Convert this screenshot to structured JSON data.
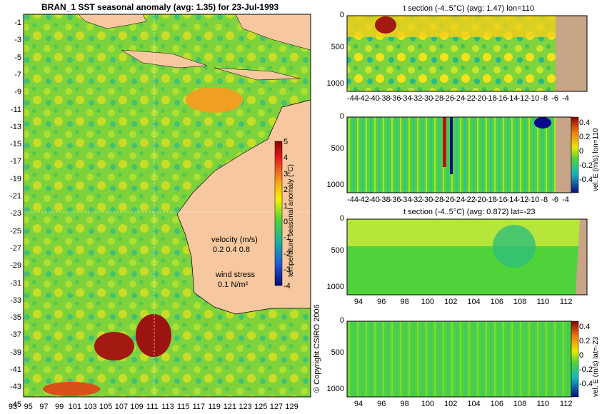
{
  "main": {
    "title": "BRAN_1  SST seasonal anomaly  (avg: 1.35)  for 23-Jul-1993",
    "colorbar_label": "temperature seasonal anomaly (°C)",
    "colorbar_ticks": [
      "5",
      "4",
      "3",
      "2",
      "1",
      "0",
      "-1",
      "-2",
      "-3",
      "-4"
    ],
    "y_ticks": [
      "-1",
      "-3",
      "-5",
      "-7",
      "-9",
      "-11",
      "-13",
      "-15",
      "-17",
      "-19",
      "-21",
      "-23",
      "-25",
      "-27",
      "-29",
      "-31",
      "-33",
      "-35",
      "-37",
      "-39",
      "-41",
      "-43",
      "-45"
    ],
    "x_ticks": [
      "93",
      "95",
      "97",
      "99",
      "101",
      "103",
      "105",
      "107",
      "109",
      "111",
      "113",
      "115",
      "117",
      "119",
      "121",
      "123",
      "125",
      "127",
      "129"
    ],
    "legend": {
      "velocity_label": "velocity (m/s)",
      "velocity_values": "0.2 0.4 0.8",
      "wind_label": "wind stress",
      "wind_value": "0.1 N/m²"
    },
    "colors": {
      "ocean": "#7fd33c",
      "land": "#f7c79f"
    }
  },
  "copyright": "© Copyright CSIRO 2006",
  "panels": [
    {
      "title": "t section (-4..5°C) (avg: 1.47) lon=110",
      "x_ticks": [
        "-44",
        "-42",
        "-40",
        "-38",
        "-36",
        "-34",
        "-32",
        "-30",
        "-28",
        "-26",
        "-24",
        "-22",
        "-20",
        "-18",
        "-16",
        "-14",
        "-12",
        "-10",
        "-8",
        "-6",
        "-4"
      ],
      "y_ticks": [
        "0",
        "500",
        "1000"
      ]
    },
    {
      "title": "",
      "x_ticks": [
        "-44",
        "-42",
        "-40",
        "-38",
        "-36",
        "-34",
        "-32",
        "-30",
        "-28",
        "-26",
        "-24",
        "-22",
        "-20",
        "-18",
        "-16",
        "-14",
        "-12",
        "-10",
        "-8",
        "-6",
        "-4"
      ],
      "y_ticks": [
        "0",
        "500",
        "1000"
      ],
      "colorbar_ticks": [
        "0.4",
        "0.2",
        "0",
        "-0.2",
        "-0.4"
      ],
      "colorbar_label": "vel. E (m/s) lon=110"
    },
    {
      "title": "t section (-4..5°C) (avg: 0.872) lat=-23",
      "x_ticks": [
        "94",
        "96",
        "98",
        "100",
        "102",
        "104",
        "106",
        "108",
        "110",
        "112"
      ],
      "y_ticks": [
        "0",
        "500",
        "1000"
      ]
    },
    {
      "title": "",
      "x_ticks": [
        "94",
        "96",
        "98",
        "100",
        "102",
        "104",
        "106",
        "108",
        "110",
        "112"
      ],
      "y_ticks": [
        "0",
        "500",
        "1000"
      ],
      "colorbar_ticks": [
        "0.4",
        "0.2",
        "0",
        "-0.2",
        "-0.4"
      ],
      "colorbar_label": "vel. E (m/s) lat=-23"
    }
  ],
  "chart_data": [
    {
      "type": "heatmap",
      "title": "BRAN_1  SST seasonal anomaly  (avg: 1.35)  for 23-Jul-1993",
      "x_range": [
        93,
        130
      ],
      "y_range": [
        -45,
        0
      ],
      "color_range": [
        -4,
        5
      ],
      "colorbar_label": "temperature seasonal anomaly (°C)"
    },
    {
      "type": "heatmap",
      "title": "t section (-4..5°C) (avg: 1.47) lon=110",
      "x_range": [
        -45,
        -3
      ],
      "y_range": [
        1050,
        0
      ]
    },
    {
      "type": "heatmap",
      "title": "",
      "x_range": [
        -45,
        -3
      ],
      "y_range": [
        1050,
        0
      ],
      "color_range": [
        -0.4,
        0.4
      ],
      "colorbar_label": "vel. E (m/s) lon=110"
    },
    {
      "type": "heatmap",
      "title": "t section (-4..5°C) (avg: 0.872) lat=-23",
      "x_range": [
        93,
        113
      ],
      "y_range": [
        1050,
        0
      ]
    },
    {
      "type": "heatmap",
      "title": "",
      "x_range": [
        93,
        113
      ],
      "y_range": [
        1050,
        0
      ],
      "color_range": [
        -0.4,
        0.4
      ],
      "colorbar_label": "vel. E (m/s) lat=-23"
    }
  ]
}
